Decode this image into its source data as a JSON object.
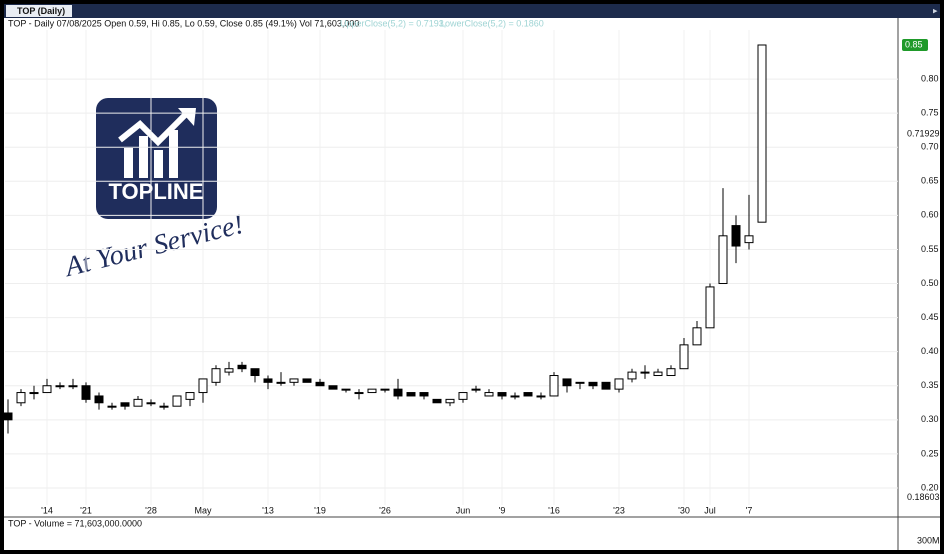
{
  "chart_data": {
    "type": "candlestick",
    "window_title": "TOP (Daily)",
    "title": "TOP - Daily 07/08/2025 Open 0.59, Hi 0.85, Lo 0.59, Close 0.85 (49.1%) Vol 71,603,000",
    "annotations": [
      "UpperClose(5,2) = 0.7193,",
      "LowerClose(5,2) = 0.1860"
    ],
    "watermark": {
      "name": "TOPLINE",
      "slogan": "At Your Service!"
    },
    "categories": [
      null,
      null,
      null,
      "'14",
      null,
      null,
      "'21",
      null,
      null,
      null,
      null,
      "'28",
      null,
      null,
      null,
      "May",
      null,
      null,
      null,
      null,
      "'13",
      null,
      null,
      null,
      "'19",
      null,
      null,
      null,
      null,
      "'26",
      null,
      null,
      null,
      null,
      null,
      "Jun",
      null,
      null,
      "'9",
      null,
      null,
      null,
      "'16",
      null,
      null,
      null,
      null,
      "'23",
      null,
      null,
      null,
      null,
      "'30",
      null,
      "Jul",
      null,
      null,
      "'7",
      null
    ],
    "open": [
      0.31,
      0.325,
      0.34,
      0.34,
      0.35,
      0.35,
      0.35,
      0.335,
      0.32,
      0.325,
      0.32,
      0.325,
      0.32,
      0.32,
      0.33,
      0.34,
      0.355,
      0.37,
      0.38,
      0.375,
      0.36,
      0.355,
      0.355,
      0.36,
      0.355,
      0.35,
      0.345,
      0.34,
      0.34,
      0.345,
      0.345,
      0.34,
      0.34,
      0.33,
      0.325,
      0.33,
      0.345,
      0.335,
      0.34,
      0.335,
      0.34,
      0.335,
      0.335,
      0.36,
      0.355,
      0.355,
      0.355,
      0.345,
      0.36,
      0.37,
      0.365,
      0.365,
      0.375,
      0.41,
      0.435,
      0.5,
      0.585,
      0.56,
      0.59
    ],
    "high": [
      0.33,
      0.345,
      0.35,
      0.36,
      0.355,
      0.36,
      0.355,
      0.34,
      0.325,
      0.325,
      0.335,
      0.33,
      0.325,
      0.335,
      0.34,
      0.36,
      0.38,
      0.385,
      0.385,
      0.375,
      0.365,
      0.37,
      0.36,
      0.36,
      0.36,
      0.35,
      0.345,
      0.345,
      0.345,
      0.345,
      0.36,
      0.34,
      0.34,
      0.33,
      0.33,
      0.34,
      0.35,
      0.345,
      0.34,
      0.34,
      0.34,
      0.34,
      0.37,
      0.36,
      0.355,
      0.355,
      0.355,
      0.36,
      0.375,
      0.38,
      0.375,
      0.38,
      0.42,
      0.445,
      0.5,
      0.64,
      0.6,
      0.63,
      0.85
    ],
    "low": [
      0.28,
      0.32,
      0.33,
      0.34,
      0.345,
      0.345,
      0.325,
      0.315,
      0.315,
      0.315,
      0.32,
      0.32,
      0.315,
      0.32,
      0.32,
      0.325,
      0.35,
      0.365,
      0.37,
      0.355,
      0.345,
      0.35,
      0.35,
      0.355,
      0.35,
      0.345,
      0.34,
      0.33,
      0.34,
      0.34,
      0.33,
      0.335,
      0.33,
      0.325,
      0.32,
      0.325,
      0.34,
      0.335,
      0.33,
      0.33,
      0.335,
      0.33,
      0.335,
      0.34,
      0.345,
      0.345,
      0.345,
      0.34,
      0.355,
      0.36,
      0.365,
      0.365,
      0.375,
      0.41,
      0.435,
      0.5,
      0.53,
      0.55,
      0.59
    ],
    "close": [
      0.3,
      0.34,
      0.34,
      0.35,
      0.35,
      0.35,
      0.33,
      0.325,
      0.32,
      0.32,
      0.33,
      0.325,
      0.32,
      0.335,
      0.34,
      0.36,
      0.375,
      0.375,
      0.375,
      0.365,
      0.355,
      0.355,
      0.36,
      0.355,
      0.35,
      0.345,
      0.345,
      0.34,
      0.345,
      0.345,
      0.335,
      0.335,
      0.335,
      0.325,
      0.33,
      0.34,
      0.345,
      0.34,
      0.335,
      0.335,
      0.335,
      0.335,
      0.365,
      0.35,
      0.355,
      0.35,
      0.345,
      0.36,
      0.37,
      0.37,
      0.37,
      0.375,
      0.41,
      0.435,
      0.495,
      0.57,
      0.555,
      0.57,
      0.85
    ],
    "ylim": [
      0.175,
      0.872
    ],
    "yticks": [
      {
        "value": 0.2,
        "label": "0.20"
      },
      0.25,
      {
        "value": 0.3,
        "label": "0.30"
      },
      0.35,
      {
        "value": 0.4,
        "label": "0.40"
      },
      0.45,
      {
        "value": 0.5,
        "label": "0.50"
      },
      0.55,
      {
        "value": 0.6,
        "label": "0.60"
      },
      0.65,
      {
        "value": 0.7,
        "label": "0.70"
      },
      0.75,
      {
        "value": 0.8,
        "label": "0.80"
      }
    ],
    "markers": [
      0.85,
      0.71929,
      0.18603
    ],
    "last_price_color": "#1f9a2a",
    "grid": true,
    "volume_title": "TOP - Volume = 71,603,000.0000",
    "volume_ylim": [
      0,
      1070000000
    ],
    "volume_yticks": [
      {
        "value": 300000000,
        "label": "300M"
      }
    ]
  }
}
